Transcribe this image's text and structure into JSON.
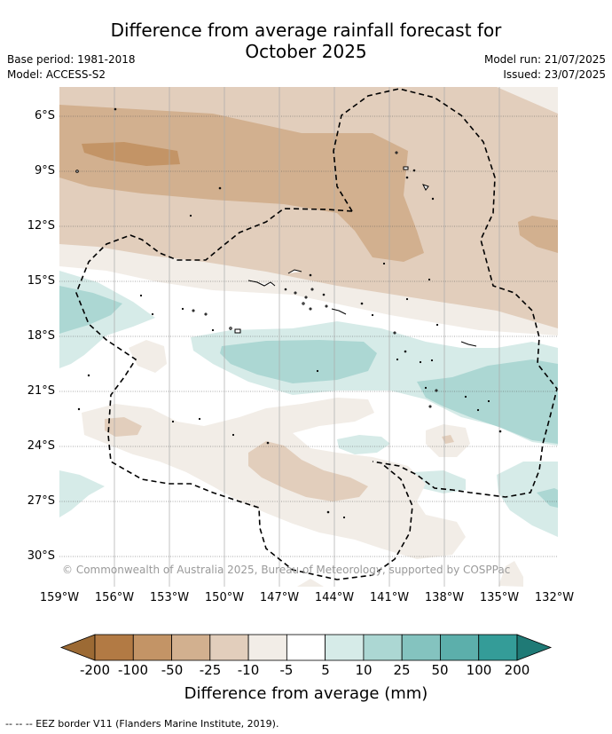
{
  "title_line1": "Difference from average rainfall forecast for",
  "title_line2": "October 2025",
  "meta": {
    "base_period": "Base period: 1981-2018",
    "model": "Model: ACCESS-S2",
    "model_run": "Model run: 21/07/2025",
    "issued": "Issued: 23/07/2025"
  },
  "lat_labels": [
    "6°S",
    "9°S",
    "12°S",
    "15°S",
    "18°S",
    "21°S",
    "24°S",
    "27°S",
    "30°S"
  ],
  "lon_labels": [
    "159°W",
    "156°W",
    "153°W",
    "150°W",
    "147°W",
    "144°W",
    "141°W",
    "138°W",
    "135°W",
    "132°W"
  ],
  "credit": "© Commonwealth of Australia 2025, Bureau of Meteorology, supported by COSPPac",
  "colorbar": {
    "labels": [
      "-200",
      "-100",
      "-50",
      "-25",
      "-10",
      "-5",
      "5",
      "10",
      "25",
      "50",
      "100",
      "200"
    ],
    "colors": [
      "#9c6a34",
      "#b27a44",
      "#c39466",
      "#d2b08f",
      "#e2cebc",
      "#f2ede7",
      "#ffffff",
      "#d6ebe8",
      "#acd7d3",
      "#84c3bf",
      "#5cafab",
      "#349c98",
      "#1f7a76"
    ],
    "title": "Difference from average (mm)"
  },
  "footer": "-- -- -- EEZ border V11 (Flanders Marine Institute, 2019)."
}
